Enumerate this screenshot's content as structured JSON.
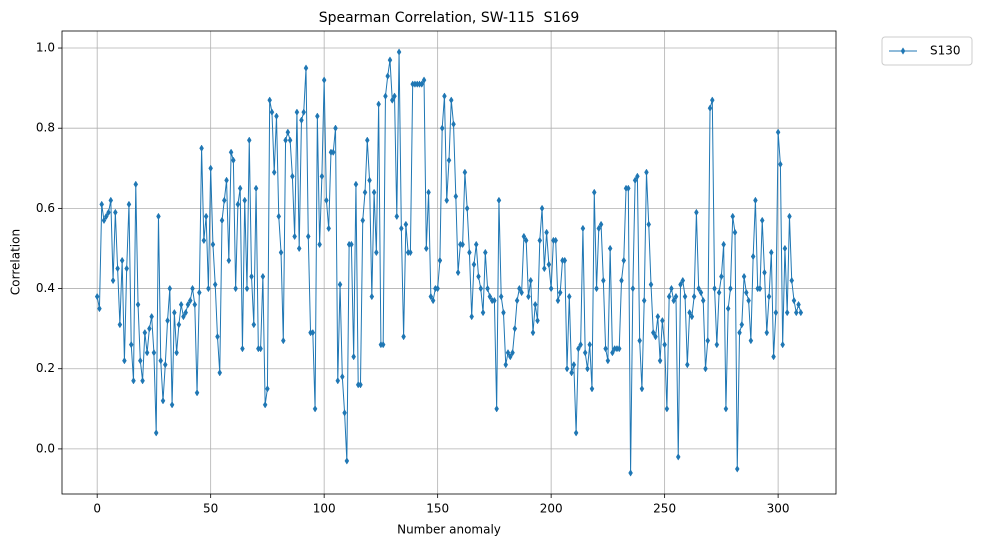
{
  "chart_data": {
    "type": "line",
    "title": "Spearman Correlation, SW-115  S169",
    "xlabel": "Number anomaly",
    "ylabel": "Correlation",
    "x": [
      0,
      1,
      2,
      3,
      4,
      5,
      6,
      7,
      8,
      9,
      10,
      11,
      12,
      13,
      14,
      15,
      16,
      17,
      18,
      19,
      20,
      21,
      22,
      23,
      24,
      25,
      26,
      27,
      28,
      29,
      30,
      31,
      32,
      33,
      34,
      35,
      36,
      37,
      38,
      39,
      40,
      41,
      42,
      43,
      44,
      45,
      46,
      47,
      48,
      49,
      50,
      51,
      52,
      53,
      54,
      55,
      56,
      57,
      58,
      59,
      60,
      61,
      62,
      63,
      64,
      65,
      66,
      67,
      68,
      69,
      70,
      71,
      72,
      73,
      74,
      75,
      76,
      77,
      78,
      79,
      80,
      81,
      82,
      83,
      84,
      85,
      86,
      87,
      88,
      89,
      90,
      91,
      92,
      93,
      94,
      95,
      96,
      97,
      98,
      99,
      100,
      101,
      102,
      103,
      104,
      105,
      106,
      107,
      108,
      109,
      110,
      111,
      112,
      113,
      114,
      115,
      116,
      117,
      118,
      119,
      120,
      121,
      122,
      123,
      124,
      125,
      126,
      127,
      128,
      129,
      130,
      131,
      132,
      133,
      134,
      135,
      136,
      137,
      138,
      139,
      140,
      141,
      142,
      143,
      144,
      145,
      146,
      147,
      148,
      149,
      150,
      151,
      152,
      153,
      154,
      155,
      156,
      157,
      158,
      159,
      160,
      161,
      162,
      163,
      164,
      165,
      166,
      167,
      168,
      169,
      170,
      171,
      172,
      173,
      174,
      175,
      176,
      177,
      178,
      179,
      180,
      181,
      182,
      183,
      184,
      185,
      186,
      187,
      188,
      189,
      190,
      191,
      192,
      193,
      194,
      195,
      196,
      197,
      198,
      199,
      200,
      201,
      202,
      203,
      204,
      205,
      206,
      207,
      208,
      209,
      210,
      211,
      212,
      213,
      214,
      215,
      216,
      217,
      218,
      219,
      220,
      221,
      222,
      223,
      224,
      225,
      226,
      227,
      228,
      229,
      230,
      231,
      232,
      233,
      234,
      235,
      236,
      237,
      238,
      239,
      240,
      241,
      242,
      243,
      244,
      245,
      246,
      247,
      248,
      249,
      250,
      251,
      252,
      253,
      254,
      255,
      256,
      257,
      258,
      259,
      260,
      261,
      262,
      263,
      264,
      265,
      266,
      267,
      268,
      269,
      270,
      271,
      272,
      273,
      274,
      275,
      276,
      277,
      278,
      279,
      280,
      281,
      282,
      283,
      284,
      285,
      286,
      287,
      288,
      289,
      290,
      291,
      292,
      293,
      294,
      295,
      296,
      297,
      298,
      299,
      300,
      301,
      302,
      303,
      304,
      305,
      306,
      307,
      308,
      309,
      310
    ],
    "series": [
      {
        "name": "S130",
        "color": "#1f77b4",
        "values": [
          0.38,
          0.35,
          0.61,
          0.57,
          0.58,
          0.59,
          0.62,
          0.42,
          0.59,
          0.45,
          0.31,
          0.47,
          0.22,
          0.45,
          0.61,
          0.26,
          0.17,
          0.66,
          0.36,
          0.22,
          0.17,
          0.29,
          0.24,
          0.3,
          0.33,
          0.24,
          0.04,
          0.58,
          0.22,
          0.12,
          0.21,
          0.32,
          0.4,
          0.11,
          0.34,
          0.24,
          0.31,
          0.36,
          0.33,
          0.34,
          0.36,
          0.37,
          0.4,
          0.36,
          0.14,
          0.39,
          0.75,
          0.52,
          0.58,
          0.4,
          0.7,
          0.51,
          0.41,
          0.28,
          0.19,
          0.57,
          0.62,
          0.67,
          0.47,
          0.74,
          0.72,
          0.4,
          0.61,
          0.65,
          0.25,
          0.62,
          0.4,
          0.77,
          0.43,
          0.31,
          0.65,
          0.25,
          0.25,
          0.43,
          0.11,
          0.15,
          0.87,
          0.84,
          0.69,
          0.83,
          0.58,
          0.49,
          0.27,
          0.77,
          0.79,
          0.77,
          0.68,
          0.53,
          0.84,
          0.5,
          0.82,
          0.84,
          0.95,
          0.53,
          0.29,
          0.29,
          0.1,
          0.83,
          0.51,
          0.68,
          0.92,
          0.62,
          0.55,
          0.74,
          0.74,
          0.8,
          0.17,
          0.41,
          0.18,
          0.09,
          -0.03,
          0.51,
          0.51,
          0.23,
          0.66,
          0.16,
          0.16,
          0.57,
          0.64,
          0.77,
          0.67,
          0.38,
          0.64,
          0.49,
          0.86,
          0.26,
          0.26,
          0.88,
          0.93,
          0.97,
          0.87,
          0.88,
          0.58,
          0.99,
          0.55,
          0.28,
          0.56,
          0.49,
          0.49,
          0.91,
          0.91,
          0.91,
          0.91,
          0.91,
          0.92,
          0.5,
          0.64,
          0.38,
          0.37,
          0.4,
          0.4,
          0.47,
          0.8,
          0.88,
          0.62,
          0.72,
          0.87,
          0.81,
          0.63,
          0.44,
          0.51,
          0.51,
          0.69,
          0.6,
          0.49,
          0.33,
          0.46,
          0.51,
          0.43,
          0.4,
          0.34,
          0.49,
          0.4,
          0.38,
          0.37,
          0.37,
          0.1,
          0.62,
          0.38,
          0.34,
          0.21,
          0.24,
          0.23,
          0.24,
          0.3,
          0.37,
          0.4,
          0.39,
          0.53,
          0.52,
          0.38,
          0.42,
          0.29,
          0.36,
          0.32,
          0.52,
          0.6,
          0.45,
          0.54,
          0.46,
          0.4,
          0.52,
          0.52,
          0.37,
          0.39,
          0.47,
          0.47,
          0.2,
          0.38,
          0.19,
          0.21,
          0.04,
          0.25,
          0.26,
          0.55,
          0.24,
          0.2,
          0.26,
          0.15,
          0.64,
          0.4,
          0.55,
          0.56,
          0.42,
          0.25,
          0.22,
          0.5,
          0.24,
          0.25,
          0.25,
          0.25,
          0.42,
          0.47,
          0.65,
          0.65,
          -0.06,
          0.4,
          0.67,
          0.68,
          0.27,
          0.15,
          0.37,
          0.69,
          0.56,
          0.41,
          0.29,
          0.28,
          0.33,
          0.22,
          0.32,
          0.26,
          0.1,
          0.38,
          0.4,
          0.37,
          0.38,
          -0.02,
          0.41,
          0.42,
          0.38,
          0.21,
          0.34,
          0.33,
          0.38,
          0.59,
          0.4,
          0.39,
          0.37,
          0.2,
          0.27,
          0.85,
          0.87,
          0.4,
          0.26,
          0.39,
          0.43,
          0.51,
          0.1,
          0.35,
          0.4,
          0.58,
          0.54,
          -0.05,
          0.29,
          0.31,
          0.43,
          0.39,
          0.37,
          0.27,
          0.48,
          0.62,
          0.4,
          0.4,
          0.57,
          0.44,
          0.29,
          0.38,
          0.49,
          0.23,
          0.34,
          0.79,
          0.71,
          0.26,
          0.5,
          0.34,
          0.58,
          0.42,
          0.37,
          0.34,
          0.36,
          0.34
        ]
      }
    ],
    "xlim": [
      -15.5,
      325.5
    ],
    "ylim": [
      -0.1125,
      1.0425
    ],
    "xticks": [
      0,
      50,
      100,
      150,
      200,
      250,
      300
    ],
    "yticks": [
      {
        "value": 0,
        "label": "0.0"
      },
      {
        "value": 0.2,
        "label": "0.2"
      },
      {
        "value": 0.4,
        "label": "0.4"
      },
      {
        "value": 0.6,
        "label": "0.6"
      },
      {
        "value": 0.8,
        "label": "0.8"
      },
      {
        "value": 1,
        "label": "1.0"
      }
    ],
    "grid": true,
    "legend": "outside-upper-right"
  }
}
